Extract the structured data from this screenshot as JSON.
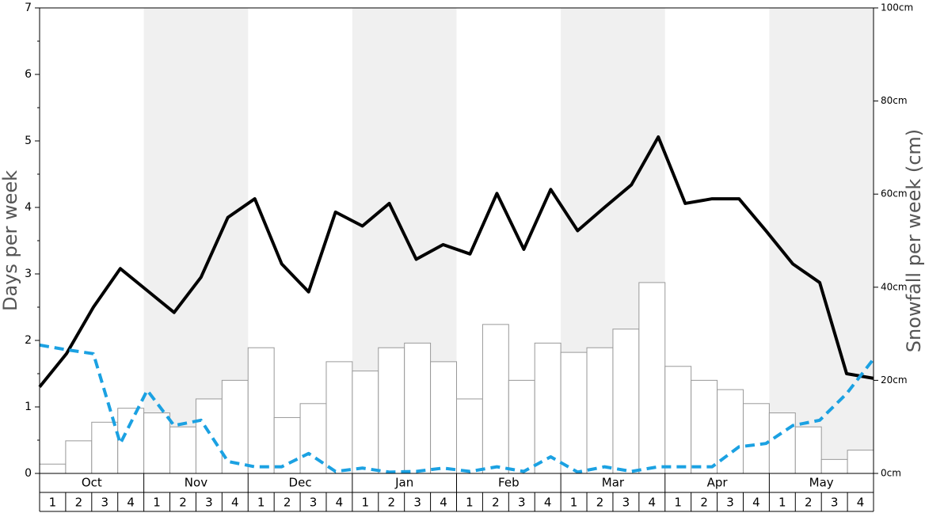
{
  "chart_data": {
    "type": "bar-line",
    "ylabel": "Days per week",
    "y2label": "Snowfall per week (cm)",
    "groups": [
      "Oct",
      "Nov",
      "Dec",
      "Jan",
      "Feb",
      "Mar",
      "Apr",
      "May"
    ],
    "categories": [
      "1",
      "2",
      "3",
      "4",
      "1",
      "2",
      "3",
      "4",
      "1",
      "2",
      "3",
      "4",
      "1",
      "2",
      "3",
      "4",
      "1",
      "2",
      "3",
      "4",
      "1",
      "2",
      "3",
      "4",
      "1",
      "2",
      "3",
      "4",
      "1",
      "2",
      "3",
      "4"
    ],
    "series": [
      {
        "kind": "bar",
        "axis": "y2",
        "color": "#ffffff",
        "values": [
          2,
          7,
          11,
          14,
          13,
          10,
          16,
          20,
          27,
          12,
          15,
          24,
          22,
          27,
          28,
          24,
          16,
          32,
          20,
          28,
          26,
          27,
          31,
          41,
          23,
          20,
          18,
          15,
          13,
          10,
          3,
          5
        ]
      },
      {
        "kind": "line",
        "color": "#000000",
        "values": [
          1.3,
          1.8,
          2.5,
          3.08,
          2.75,
          2.42,
          2.95,
          3.85,
          4.13,
          3.15,
          2.73,
          3.93,
          3.72,
          4.06,
          3.22,
          3.44,
          3.3,
          4.21,
          3.37,
          4.27,
          3.65,
          4.0,
          4.34,
          5.06,
          4.06,
          4.13,
          4.13,
          3.65,
          3.15,
          2.87,
          1.5,
          1.43
        ]
      },
      {
        "kind": "dashed-line",
        "color": "#1ba1e2",
        "values": [
          1.93,
          1.86,
          1.8,
          0.45,
          1.25,
          0.72,
          0.8,
          0.18,
          0.1,
          0.1,
          0.3,
          0.03,
          0.08,
          0.02,
          0.03,
          0.08,
          0.03,
          0.1,
          0.03,
          0.25,
          0.02,
          0.1,
          0.03,
          0.1,
          0.1,
          0.1,
          0.4,
          0.45,
          0.72,
          0.8,
          1.2,
          1.72
        ]
      }
    ],
    "ylim": [
      0,
      7
    ],
    "yticks": [
      0,
      1,
      2,
      3,
      4,
      5,
      6,
      7
    ],
    "yminorticks": [
      0.5,
      1.5,
      2.5,
      3.5,
      4.5,
      5.5,
      6.5
    ],
    "y2lim": [
      0,
      100
    ],
    "y2ticks": [
      {
        "value": 0,
        "label": "0cm"
      },
      {
        "value": 20,
        "label": "20cm"
      },
      {
        "value": 40,
        "label": "40cm"
      },
      {
        "value": 60,
        "label": "60cm"
      },
      {
        "value": 80,
        "label": "80cm"
      },
      {
        "value": 100,
        "label": "100cm"
      }
    ],
    "shade_color": "#f0f0f0"
  }
}
